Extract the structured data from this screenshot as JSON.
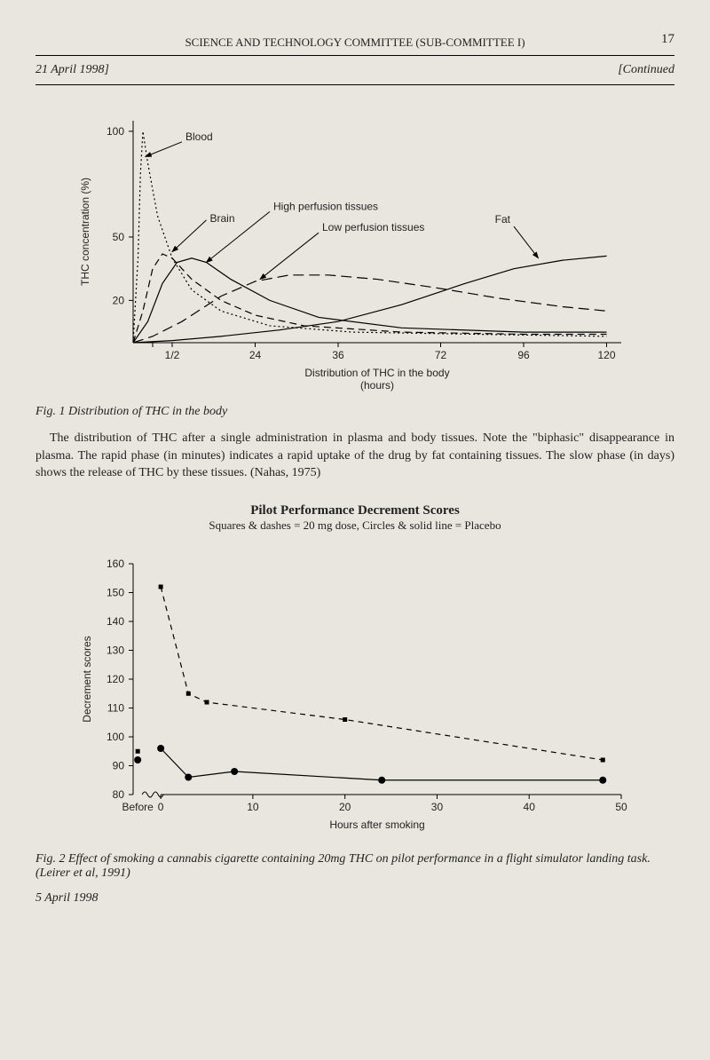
{
  "page": {
    "header": "SCIENCE AND TECHNOLOGY COMMITTEE (SUB-COMMITTEE I)",
    "page_number": "17",
    "date_left": "21 April 1998]",
    "date_right": "[Continued",
    "footer_date": "5 April 1998"
  },
  "fig1": {
    "caption": "Fig. 1  Distribution of THC in the body",
    "body_text": "The distribution of THC after a single administration in plasma and body tissues. Note the \"biphasic\" disappearance in plasma. The rapid phase (in minutes) indicates a rapid uptake of the drug by fat containing tissues. The slow phase (in days) shows the release of THC by these tissues. (Nahas, 1975)",
    "y_label": "THC concentration (%)",
    "x_label_1": "Distribution of THC in the body",
    "x_label_2": "(hours)",
    "y_ticks": [
      {
        "v": 20,
        "label": "20"
      },
      {
        "v": 50,
        "label": "50"
      },
      {
        "v": 100,
        "label": "100"
      }
    ],
    "x_ticks": [
      {
        "pos": 0.08,
        "label": "1/2"
      },
      {
        "pos": 0.25,
        "label": "24"
      },
      {
        "pos": 0.42,
        "label": "36"
      },
      {
        "pos": 0.63,
        "label": "72"
      },
      {
        "pos": 0.8,
        "label": "96"
      },
      {
        "pos": 0.97,
        "label": "120"
      }
    ],
    "series_labels": {
      "blood": "Blood",
      "brain": "Brain",
      "high_perfusion": "High perfusion tissues",
      "low_perfusion": "Low perfusion tissues",
      "fat": "Fat"
    },
    "curves": {
      "blood": {
        "stroke_dasharray": "2 3",
        "stroke_width": 1.4,
        "points": [
          [
            0,
            0
          ],
          [
            0.01,
            40
          ],
          [
            0.015,
            80
          ],
          [
            0.02,
            100
          ],
          [
            0.03,
            85
          ],
          [
            0.05,
            60
          ],
          [
            0.08,
            40
          ],
          [
            0.12,
            25
          ],
          [
            0.18,
            15
          ],
          [
            0.28,
            8
          ],
          [
            0.45,
            5
          ],
          [
            0.7,
            4
          ],
          [
            0.97,
            3
          ]
        ]
      },
      "brain": {
        "stroke_dasharray": "8 5",
        "stroke_width": 1.2,
        "points": [
          [
            0,
            0
          ],
          [
            0.02,
            15
          ],
          [
            0.04,
            35
          ],
          [
            0.06,
            42
          ],
          [
            0.08,
            40
          ],
          [
            0.12,
            30
          ],
          [
            0.18,
            20
          ],
          [
            0.25,
            13
          ],
          [
            0.35,
            8
          ],
          [
            0.55,
            5
          ],
          [
            0.8,
            4
          ],
          [
            0.97,
            4
          ]
        ]
      },
      "high_perfusion": {
        "stroke_dasharray": "none",
        "stroke_width": 1.2,
        "points": [
          [
            0,
            0
          ],
          [
            0.03,
            10
          ],
          [
            0.06,
            28
          ],
          [
            0.09,
            38
          ],
          [
            0.12,
            40
          ],
          [
            0.15,
            38
          ],
          [
            0.2,
            30
          ],
          [
            0.28,
            20
          ],
          [
            0.38,
            12
          ],
          [
            0.55,
            7
          ],
          [
            0.8,
            5
          ],
          [
            0.97,
            5
          ]
        ]
      },
      "low_perfusion": {
        "stroke_dasharray": "12 6",
        "stroke_width": 1.2,
        "points": [
          [
            0,
            0
          ],
          [
            0.04,
            3
          ],
          [
            0.1,
            10
          ],
          [
            0.18,
            22
          ],
          [
            0.25,
            29
          ],
          [
            0.32,
            32
          ],
          [
            0.4,
            32
          ],
          [
            0.5,
            30
          ],
          [
            0.62,
            26
          ],
          [
            0.75,
            21
          ],
          [
            0.88,
            17
          ],
          [
            0.97,
            15
          ]
        ]
      },
      "fat": {
        "stroke_dasharray": "none",
        "stroke_width": 2.2,
        "points": [
          [
            0,
            0
          ],
          [
            0.08,
            1
          ],
          [
            0.18,
            3
          ],
          [
            0.3,
            6
          ],
          [
            0.42,
            10
          ],
          [
            0.55,
            18
          ],
          [
            0.68,
            28
          ],
          [
            0.78,
            35
          ],
          [
            0.88,
            39
          ],
          [
            0.97,
            41
          ]
        ]
      }
    },
    "label_arrows": [
      {
        "key": "blood",
        "from": [
          0.1,
          95
        ],
        "to": [
          0.025,
          88
        ]
      },
      {
        "key": "brain",
        "from": [
          0.15,
          58
        ],
        "to": [
          0.08,
          43
        ]
      },
      {
        "key": "high_perfusion",
        "from": [
          0.28,
          62
        ],
        "to": [
          0.15,
          38
        ]
      },
      {
        "key": "low_perfusion",
        "from": [
          0.38,
          52
        ],
        "to": [
          0.26,
          30
        ]
      },
      {
        "key": "fat",
        "from": [
          0.78,
          55
        ],
        "to": [
          0.83,
          40
        ]
      }
    ],
    "ylim": [
      0,
      105
    ],
    "background_color": "#e8e6de",
    "axis_color": "#000000"
  },
  "fig2": {
    "title": "Pilot Performance Decrement Scores",
    "subtitle": "Squares & dashes = 20 mg dose, Circles & solid line = Placebo",
    "caption": "Fig. 2  Effect of smoking a cannabis cigarette containing 20mg THC on pilot performance in a flight simulator landing task. (Leirer et al, 1991)",
    "y_label": "Decrement scores",
    "x_label": "Hours after smoking",
    "y_ticks": [
      80,
      90,
      100,
      110,
      120,
      130,
      140,
      150,
      160
    ],
    "x_ticks": [
      {
        "pos": -1,
        "label": "Before"
      },
      {
        "pos": 0,
        "label": "0"
      },
      {
        "pos": 10,
        "label": "10"
      },
      {
        "pos": 20,
        "label": "20"
      },
      {
        "pos": 30,
        "label": "30"
      },
      {
        "pos": 40,
        "label": "40"
      },
      {
        "pos": 50,
        "label": "50"
      }
    ],
    "ylim": [
      80,
      160
    ],
    "xlim": [
      -3,
      50
    ],
    "series": {
      "thc": {
        "marker": "square",
        "marker_size": 5,
        "stroke_dasharray": "6 5",
        "stroke_width": 1.2,
        "color": "#000000",
        "points": [
          [
            -2.5,
            95
          ],
          [
            0,
            152
          ],
          [
            3,
            115
          ],
          [
            5,
            112
          ],
          [
            20,
            106
          ],
          [
            48,
            92
          ]
        ]
      },
      "placebo": {
        "marker": "circle",
        "marker_size": 4,
        "stroke_dasharray": "none",
        "stroke_width": 1.4,
        "color": "#000000",
        "points": [
          [
            -2.5,
            92
          ],
          [
            0,
            96
          ],
          [
            3,
            86
          ],
          [
            8,
            88
          ],
          [
            24,
            85
          ],
          [
            48,
            85
          ]
        ]
      }
    },
    "background_color": "#e8e6de",
    "axis_color": "#000000"
  }
}
